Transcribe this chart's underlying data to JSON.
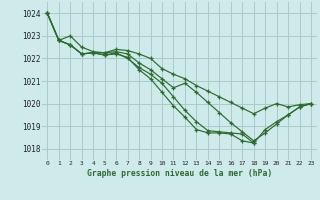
{
  "title": "Graphe pression niveau de la mer (hPa)",
  "bg_color": "#ceeaea",
  "grid_color": "#aacaca",
  "line_color": "#2d6b2d",
  "xlim": [
    -0.5,
    23.5
  ],
  "ylim": [
    1017.5,
    1024.5
  ],
  "yticks": [
    1018,
    1019,
    1020,
    1021,
    1022,
    1023,
    1024
  ],
  "xticks": [
    0,
    1,
    2,
    3,
    4,
    5,
    6,
    7,
    8,
    9,
    10,
    11,
    12,
    13,
    14,
    15,
    16,
    17,
    18,
    19,
    20,
    21,
    22,
    23
  ],
  "series": [
    {
      "x": [
        0,
        1,
        2,
        3,
        4,
        5,
        6,
        7,
        8,
        9,
        10,
        11,
        12,
        13,
        14,
        15,
        16,
        17,
        18,
        19,
        20,
        21,
        22,
        23
      ],
      "y": [
        1024.0,
        1022.8,
        1023.0,
        1022.5,
        1022.3,
        1022.25,
        1022.4,
        1022.35,
        1022.2,
        1022.0,
        1021.55,
        1021.3,
        1021.1,
        1020.8,
        1020.55,
        1020.3,
        1020.05,
        1019.8,
        1019.55,
        1019.8,
        1020.0,
        1019.85,
        1019.95,
        1020.0
      ]
    },
    {
      "x": [
        0,
        1,
        2,
        3,
        4,
        5,
        6,
        7,
        8,
        9,
        10,
        11,
        12,
        13,
        14,
        15,
        16,
        17,
        18,
        19,
        20,
        21,
        22,
        23
      ],
      "y": [
        1024.0,
        1022.8,
        1022.6,
        1022.2,
        1022.25,
        1022.25,
        1022.3,
        1022.2,
        1021.8,
        1021.5,
        1021.1,
        1020.7,
        1020.9,
        1020.5,
        1020.05,
        1019.6,
        1019.15,
        1018.75,
        1018.35,
        1018.7,
        1019.1,
        1019.5,
        1019.85,
        1020.0
      ]
    },
    {
      "x": [
        0,
        1,
        2,
        3,
        4,
        5,
        6,
        7,
        8,
        9,
        10,
        11,
        12,
        13,
        14,
        15,
        16,
        17,
        18,
        19,
        20,
        21,
        22,
        23
      ],
      "y": [
        1024.0,
        1022.8,
        1022.6,
        1022.2,
        1022.25,
        1022.15,
        1022.25,
        1022.0,
        1021.6,
        1021.3,
        1020.9,
        1020.3,
        1019.7,
        1019.2,
        1018.8,
        1018.75,
        1018.7,
        1018.65,
        1018.25,
        1018.85,
        1019.2,
        1019.5,
        1019.85,
        1020.0
      ]
    },
    {
      "x": [
        0,
        1,
        2,
        3,
        4,
        5,
        6,
        7,
        8,
        9,
        10,
        11,
        12,
        13,
        14,
        15,
        16,
        17,
        18
      ],
      "y": [
        1024.0,
        1022.8,
        1022.6,
        1022.2,
        1022.25,
        1022.15,
        1022.2,
        1022.05,
        1021.5,
        1021.1,
        1020.5,
        1019.9,
        1019.4,
        1018.85,
        1018.7,
        1018.7,
        1018.65,
        1018.35,
        1018.25
      ]
    }
  ]
}
